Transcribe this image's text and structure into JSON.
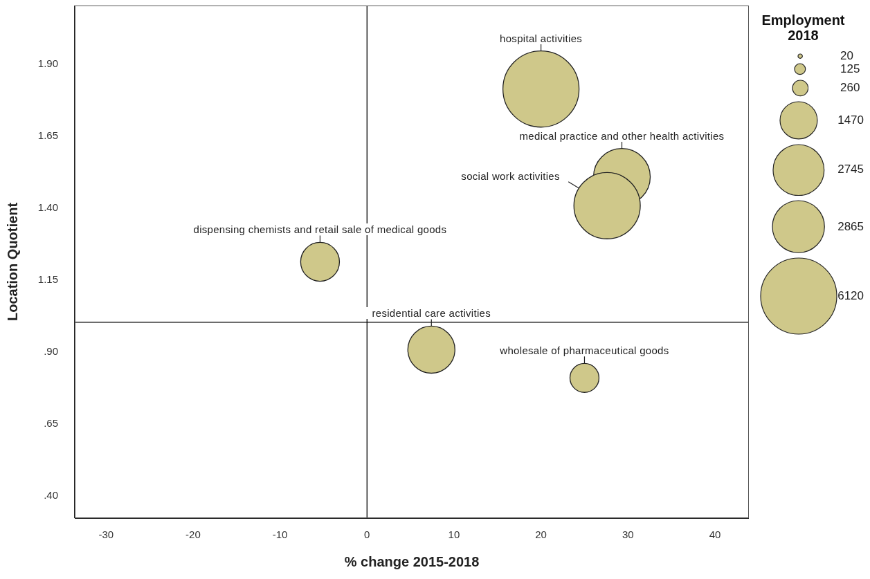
{
  "chart_data": {
    "type": "bubble",
    "xlabel": "% change 2015-2018",
    "ylabel": "Location Quotient",
    "legend_title": "Employment 2018",
    "x": [
      20.0,
      29.3,
      27.6,
      -5.4,
      7.4,
      25.0
    ],
    "values": [
      1.81,
      1.505,
      1.405,
      1.21,
      0.905,
      0.807
    ],
    "sizes": [
      6120,
      3400,
      4650,
      1590,
      2340,
      890
    ],
    "size_legend": [
      20,
      125,
      260,
      1470,
      2745,
      2865,
      6120
    ],
    "color": "#cfc88a",
    "xlim": [
      -33.6,
      43.9
    ],
    "xticks": [
      -30,
      -20,
      -10,
      0,
      10,
      20,
      30,
      40
    ],
    "ylim": [
      0.32,
      2.1
    ],
    "yticks": [
      {
        "value": 0.4,
        "label": ".40"
      },
      {
        "value": 0.65,
        "label": ".65"
      },
      {
        "value": 0.9,
        "label": ".90"
      },
      {
        "value": 1.15,
        "label": "1.15"
      },
      {
        "value": 1.4,
        "label": "1.40"
      },
      {
        "value": 1.65,
        "label": "1.65"
      },
      {
        "value": 1.9,
        "label": "1.90"
      }
    ],
    "ref_lines": [
      {
        "axis": "x",
        "value": 0,
        "color": "#000000"
      },
      {
        "axis": "y",
        "value": 1.0,
        "color": "#000000"
      }
    ],
    "annotations": [
      "hospital activities",
      "medical practice and other health activities",
      "social work activities",
      "dispensing chemists and retail sale of medical goods",
      "residential care activities",
      "wholesale of pharmaceutical goods"
    ],
    "grid": false
  }
}
